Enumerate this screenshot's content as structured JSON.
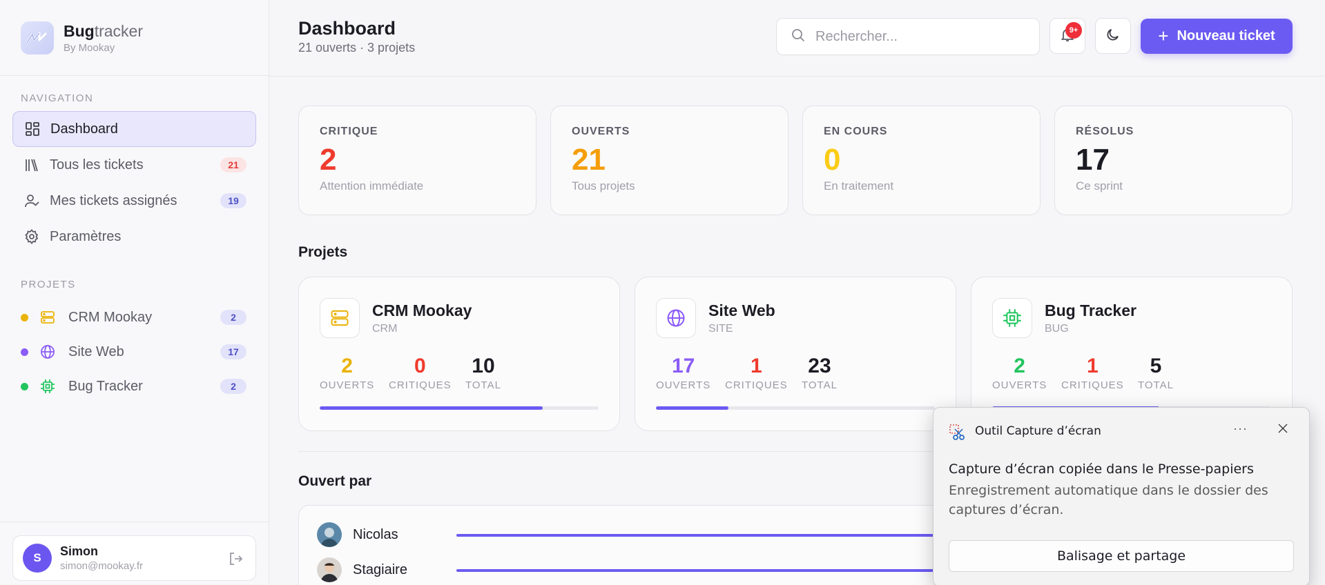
{
  "brand": {
    "name_bold": "Bug",
    "name_rest": "tracker",
    "sub": "By Mookay"
  },
  "sidebar": {
    "nav_label": "NAVIGATION",
    "items": [
      {
        "label": "Dashboard",
        "icon": "dashboard-icon"
      },
      {
        "label": "Tous les tickets",
        "icon": "library-icon",
        "badge": "21"
      },
      {
        "label": "Mes tickets assignés",
        "icon": "user-check-icon",
        "badge": "19"
      },
      {
        "label": "Paramètres",
        "icon": "gear-icon"
      }
    ],
    "projects_label": "PROJETS",
    "projects": [
      {
        "label": "CRM Mookay",
        "badge": "2",
        "color": "#eab308",
        "icon": "server-icon"
      },
      {
        "label": "Site Web",
        "badge": "17",
        "color": "#8b5cf6",
        "icon": "globe-icon"
      },
      {
        "label": "Bug Tracker",
        "badge": "2",
        "color": "#22c55e",
        "icon": "cpu-icon"
      }
    ],
    "user": {
      "initial": "S",
      "name": "Simon",
      "email": "simon@mookay.fr"
    }
  },
  "header": {
    "title": "Dashboard",
    "subtitle": "21 ouverts · 3 projets",
    "search_placeholder": "Rechercher...",
    "notif_badge": "9+",
    "new_ticket": "Nouveau ticket"
  },
  "stats": [
    {
      "label": "CRITIQUE",
      "value": "2",
      "desc": "Attention immédiate",
      "color": "#ef3b2d"
    },
    {
      "label": "OUVERTS",
      "value": "21",
      "desc": "Tous projets",
      "color": "#f59e0b"
    },
    {
      "label": "EN COURS",
      "value": "0",
      "desc": "En traitement",
      "color": "#facc15"
    },
    {
      "label": "RÉSOLUS",
      "value": "17",
      "desc": "Ce sprint",
      "color": "#1c1c24"
    }
  ],
  "projects_title": "Projets",
  "projects": [
    {
      "name": "CRM Mookay",
      "code": "CRM",
      "ouverts": "2",
      "critiques": "0",
      "total": "10",
      "progress": 0.8,
      "color": "#eab308",
      "icon": "server-icon"
    },
    {
      "name": "Site Web",
      "code": "SITE",
      "ouverts": "17",
      "critiques": "1",
      "total": "23",
      "progress": 0.26,
      "color": "#8b5cf6",
      "icon": "globe-icon"
    },
    {
      "name": "Bug Tracker",
      "code": "BUG",
      "ouverts": "2",
      "critiques": "1",
      "total": "5",
      "progress": 0.6,
      "color": "#22c55e",
      "icon": "cpu-icon"
    }
  ],
  "stat_labels": {
    "ouverts": "OUVERTS",
    "critiques": "CRITIQUES",
    "total": "TOTAL"
  },
  "opened_by": {
    "title": "Ouvert par",
    "rows": [
      {
        "name": "Nicolas"
      },
      {
        "name": "Stagiaire"
      }
    ]
  },
  "toast": {
    "app": "Outil Capture d’écran",
    "more": "···",
    "message": "Capture d’écran copiée dans le Presse-papiers",
    "sub": "Enregistrement automatique dans le dossier des captures d’écran.",
    "button": "Balisage et partage"
  }
}
